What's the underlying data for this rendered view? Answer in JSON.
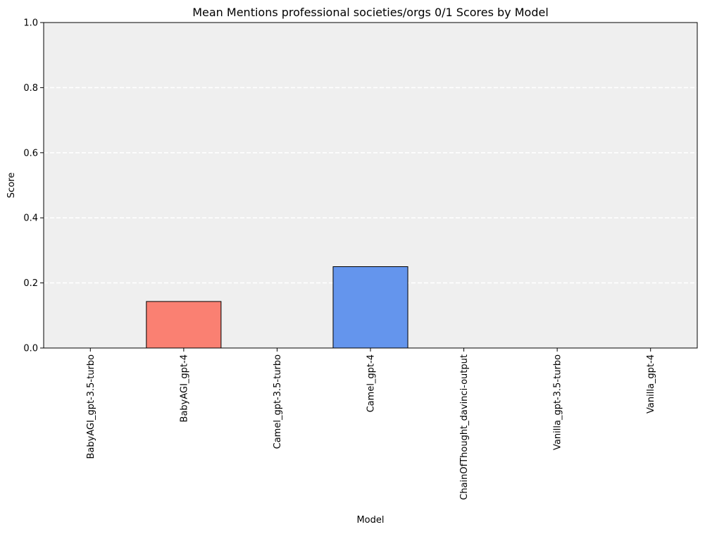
{
  "chart_data": {
    "type": "bar",
    "title": "Mean Mentions professional societies/orgs 0/1 Scores by Model",
    "xlabel": "Model",
    "ylabel": "Score",
    "categories": [
      "BabyAGI_gpt-3.5-turbo",
      "BabyAGI_gpt-4",
      "Camel_gpt-3.5-turbo",
      "Camel_gpt-4",
      "ChainOfThought_davinci-output",
      "Vanilla_gpt-3.5-turbo",
      "Vanilla_gpt-4"
    ],
    "values": [
      0.0,
      0.143,
      0.0,
      0.25,
      0.0,
      0.0,
      0.0
    ],
    "bar_colors": [
      "#fa8072",
      "#fa8072",
      "#6495ed",
      "#6495ed",
      "#fa8072",
      "#fa8072",
      "#6495ed"
    ],
    "ylim": [
      0,
      1
    ],
    "yticks": [
      0.0,
      0.2,
      0.4,
      0.6,
      0.8,
      1.0
    ],
    "ytick_labels": [
      "0.0",
      "0.2",
      "0.4",
      "0.6",
      "0.8",
      "1.0"
    ],
    "grid": "y-dashed",
    "plot_background": "#efefef",
    "grid_color": "#ffffff",
    "edge_color": "#000000"
  }
}
